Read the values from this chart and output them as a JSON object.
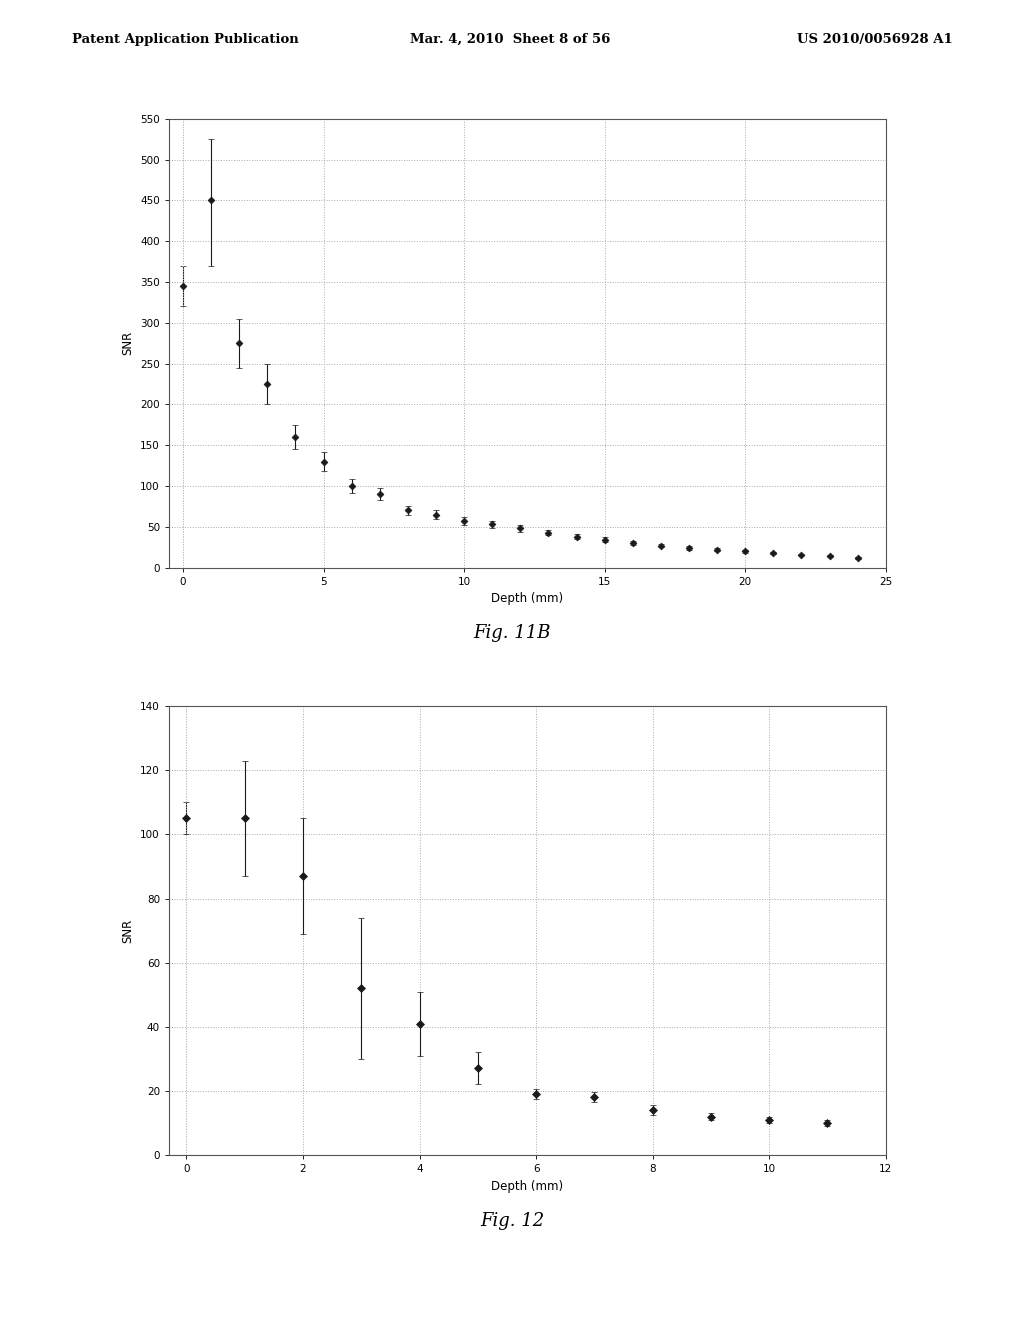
{
  "fig11b": {
    "xlabel": "Depth (mm)",
    "ylabel": "SNR",
    "xlim": [
      -0.5,
      25
    ],
    "ylim": [
      0,
      550
    ],
    "yticks": [
      0,
      50,
      100,
      150,
      200,
      250,
      300,
      350,
      400,
      450,
      500,
      550
    ],
    "xticks": [
      0,
      5,
      10,
      15,
      20,
      25
    ],
    "x": [
      0,
      1,
      2,
      3,
      4,
      5,
      6,
      7,
      8,
      9,
      10,
      11,
      12,
      13,
      14,
      15,
      16,
      17,
      18,
      19,
      20,
      21,
      22,
      23,
      24
    ],
    "y": [
      345,
      450,
      275,
      225,
      160,
      130,
      100,
      90,
      70,
      65,
      57,
      53,
      48,
      43,
      38,
      34,
      30,
      27,
      24,
      22,
      20,
      18,
      16,
      14,
      12
    ],
    "yerr_lo": [
      25,
      80,
      30,
      25,
      15,
      12,
      8,
      7,
      6,
      5,
      5,
      4,
      4,
      3,
      3,
      3,
      2,
      2,
      2,
      2,
      2,
      1,
      1,
      1,
      1
    ],
    "yerr_hi": [
      25,
      75,
      30,
      25,
      15,
      12,
      8,
      7,
      6,
      5,
      5,
      4,
      4,
      3,
      3,
      3,
      2,
      2,
      2,
      2,
      2,
      1,
      1,
      1,
      1
    ]
  },
  "fig12": {
    "xlabel": "Depth (mm)",
    "ylabel": "SNR",
    "xlim": [
      -0.3,
      12
    ],
    "ylim": [
      0,
      140
    ],
    "yticks": [
      0,
      20,
      40,
      60,
      80,
      100,
      120,
      140
    ],
    "xticks": [
      0,
      2,
      4,
      6,
      8,
      10,
      12
    ],
    "x": [
      0,
      1,
      2,
      3,
      4,
      5,
      6,
      7,
      8,
      9,
      10,
      11
    ],
    "y": [
      105,
      105,
      87,
      52,
      41,
      27,
      19,
      18,
      14,
      12,
      11,
      10
    ],
    "yerr_lo": [
      5,
      18,
      18,
      22,
      10,
      5,
      1.5,
      1.5,
      1.5,
      1,
      1,
      1
    ],
    "yerr_hi": [
      5,
      18,
      18,
      22,
      10,
      5,
      1.5,
      1.5,
      1.5,
      1,
      1,
      1
    ]
  },
  "header_left": "Patent Application Publication",
  "header_center": "Mar. 4, 2010  Sheet 8 of 56",
  "header_right": "US 2010/0056928 A1",
  "fig11b_label": "Fig. 11B",
  "fig12_label": "Fig. 12",
  "background_color": "#ffffff",
  "plot_bg": "#ffffff",
  "marker_color": "#1a1a1a",
  "grid_color": "#aaaaaa",
  "grid_style": "dotted"
}
